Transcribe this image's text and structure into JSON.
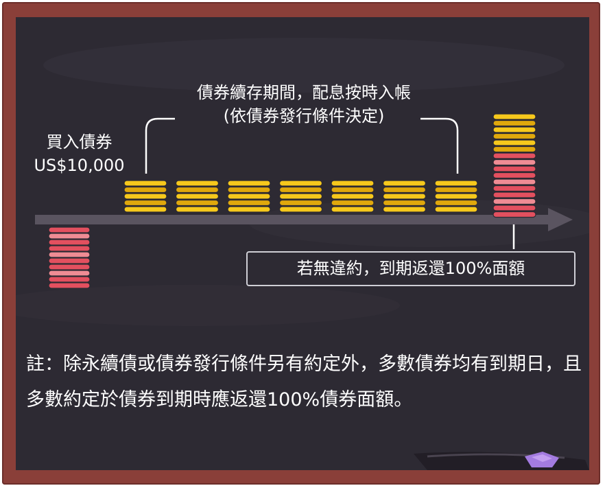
{
  "labels": {
    "buy_line1": "買入債券",
    "buy_line2": "US$10,000",
    "hold_line1": "債券續存期間，配息按時入帳",
    "hold_line2": "(依債券發行條件決定)",
    "return_text": "若無違約，到期返還100%面額",
    "note": "註：除永續債或債券發行條件另有約定外，多數債券均有到期日，且多數約定於債券到期時應返還100%債券面額。"
  },
  "colors": {
    "frame": "#8a3f39",
    "board": "#2d2a33",
    "arrow": "#5a5460",
    "coin_gold": "#f6c81c",
    "coin_gold_dark": "#e0a80c",
    "coin_pink": "#ef8c94",
    "coin_red": "#e3505f",
    "text": "#ffffff",
    "box_border": "#cfcfd6",
    "gem": "#a37be0"
  },
  "diagram": {
    "coupon_stacks": 7,
    "coins_per_coupon_stack": 5,
    "principal_coins": 10,
    "maturity_gold_coins": 6,
    "maturity_principal_coins": 10
  }
}
